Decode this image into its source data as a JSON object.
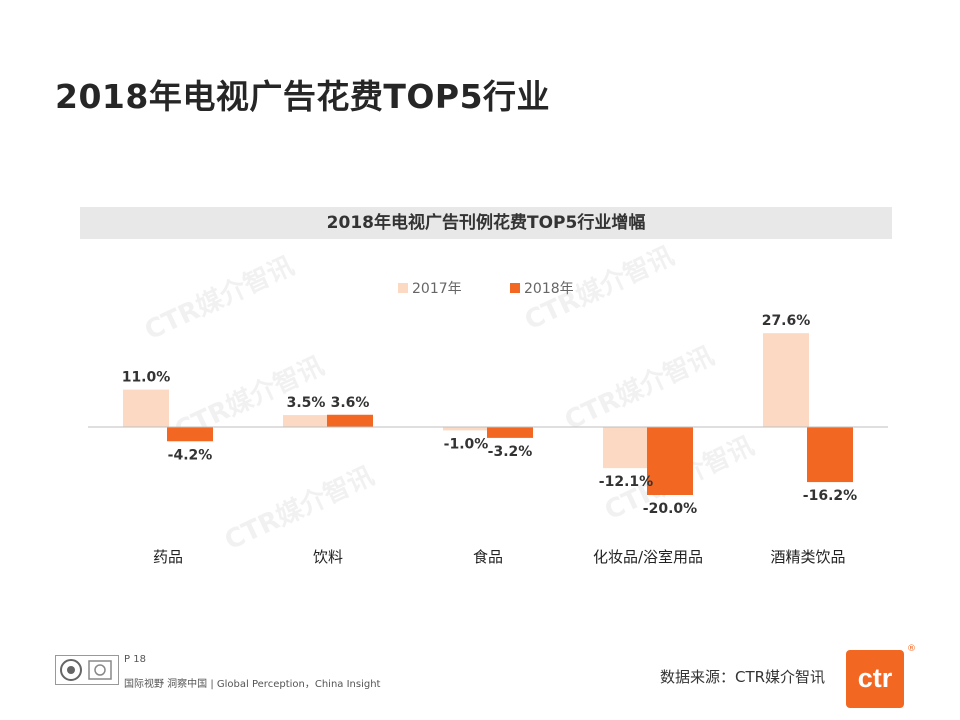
{
  "page": {
    "title": "2018年电视广告花费TOP5行业",
    "page_number": "P 18",
    "tagline": "国际视野  洞察中国 |  Global Perception，China Insight",
    "source": "数据来源：CTR媒介智讯",
    "logo_text": "ctr",
    "logo_mark": "®",
    "watermark": "CTR媒介智讯"
  },
  "colors": {
    "series_2017": "#fbd9c2",
    "series_2018": "#f26722",
    "axis": "#bfbfbf",
    "accent": "#f26722"
  },
  "chart_data": {
    "type": "bar",
    "title": "2018年电视广告刊例花费TOP5行业增幅",
    "categories": [
      "药品",
      "饮料",
      "食品",
      "化妆品/浴室用品",
      "酒精类饮品"
    ],
    "series": [
      {
        "name": "2017年",
        "values": [
          11.0,
          3.5,
          -1.0,
          -12.1,
          27.6
        ],
        "labels": [
          "11.0%",
          "3.5%",
          "-1.0%",
          "-12.1%",
          "27.6%"
        ]
      },
      {
        "name": "2018年",
        "values": [
          -4.2,
          3.6,
          -3.2,
          -20.0,
          -16.2
        ],
        "labels": [
          "-4.2%",
          "3.6%",
          "-3.2%",
          "-20.0%",
          "-16.2%"
        ]
      }
    ],
    "legend_position": "top-center",
    "grid": false,
    "unit": "%"
  }
}
